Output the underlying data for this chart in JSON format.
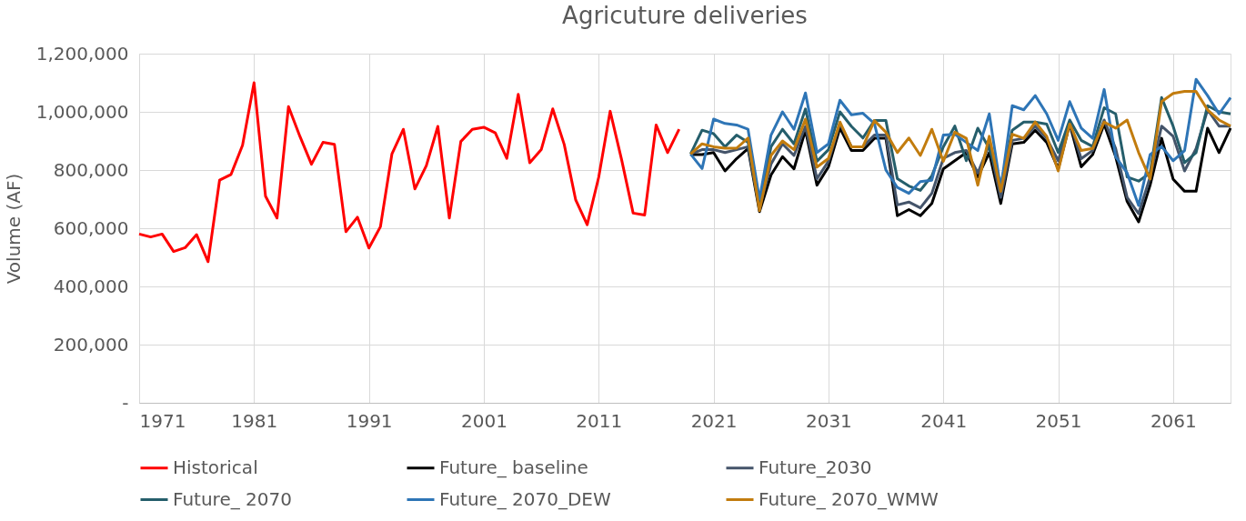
{
  "chart_data": {
    "type": "line",
    "title": "Agricuture deliveries",
    "ylabel": "Volume (AF)",
    "xlim": [
      1971,
      2066
    ],
    "xticks": [
      1971,
      1981,
      1991,
      2001,
      2011,
      2021,
      2031,
      2041,
      2051,
      2061
    ],
    "ylim": [
      0,
      1200000
    ],
    "yticks": [
      {
        "value": 0,
        "label": "-"
      },
      {
        "value": 200000,
        "label": "200,000"
      },
      {
        "value": 400000,
        "label": "400,000"
      },
      {
        "value": 600000,
        "label": "600,000"
      },
      {
        "value": 800000,
        "label": "800,000"
      },
      {
        "value": 1000000,
        "label": "1,000,000"
      },
      {
        "value": 1200000,
        "label": "1,200,000"
      }
    ],
    "grid": true,
    "legend": "bottom",
    "marker": "none",
    "line_style": "solid",
    "series": [
      {
        "name": "Historical",
        "color": "#ff0000",
        "x": [
          1971,
          1972,
          1973,
          1974,
          1975,
          1976,
          1977,
          1978,
          1979,
          1980,
          1981,
          1982,
          1983,
          1984,
          1985,
          1986,
          1987,
          1988,
          1989,
          1990,
          1991,
          1992,
          1993,
          1994,
          1995,
          1996,
          1997,
          1998,
          1999,
          2000,
          2001,
          2002,
          2003,
          2004,
          2005,
          2006,
          2007,
          2008,
          2009,
          2010,
          2011,
          2012,
          2013,
          2014,
          2015,
          2016,
          2017,
          2018
        ],
        "values": [
          580000,
          570000,
          580000,
          520000,
          533000,
          578000,
          485000,
          765000,
          785000,
          885000,
          1100000,
          710000,
          635000,
          1018000,
          915000,
          820000,
          895000,
          888000,
          588000,
          638000,
          532000,
          605000,
          855000,
          940000,
          735000,
          815000,
          950000,
          635000,
          898000,
          940000,
          947000,
          928000,
          840000,
          1060000,
          825000,
          870000,
          1010000,
          888000,
          697000,
          612000,
          775000,
          1002000,
          835000,
          652000,
          645000,
          955000,
          860000,
          940000
        ]
      },
      {
        "name": "Future_ baseline",
        "color": "#000000",
        "x": [
          2019,
          2020,
          2021,
          2022,
          2023,
          2024,
          2025,
          2026,
          2027,
          2028,
          2029,
          2030,
          2031,
          2032,
          2033,
          2034,
          2035,
          2036,
          2037,
          2038,
          2039,
          2040,
          2041,
          2042,
          2043,
          2044,
          2045,
          2046,
          2047,
          2048,
          2049,
          2050,
          2051,
          2052,
          2053,
          2054,
          2055,
          2056,
          2057,
          2058,
          2059,
          2060,
          2061,
          2062,
          2063,
          2064,
          2065,
          2066
        ],
        "values": [
          853000,
          853000,
          860000,
          797000,
          839000,
          874000,
          657000,
          783000,
          846000,
          804000,
          937000,
          748000,
          811000,
          944000,
          867000,
          867000,
          909000,
          909000,
          643000,
          664000,
          643000,
          685000,
          804000,
          832000,
          860000,
          776000,
          860000,
          685000,
          890000,
          895000,
          937000,
          895000,
          804000,
          958000,
          811000,
          853000,
          958000,
          846000,
          692000,
          622000,
          748000,
          909000,
          769000,
          727000,
          727000,
          944000,
          860000,
          944000
        ]
      },
      {
        "name": "Future_2030",
        "color": "#44546a",
        "x": [
          2019,
          2020,
          2021,
          2022,
          2023,
          2024,
          2025,
          2026,
          2027,
          2028,
          2029,
          2030,
          2031,
          2032,
          2033,
          2034,
          2035,
          2036,
          2037,
          2038,
          2039,
          2040,
          2041,
          2042,
          2043,
          2044,
          2045,
          2046,
          2047,
          2048,
          2049,
          2050,
          2051,
          2052,
          2053,
          2054,
          2055,
          2056,
          2057,
          2058,
          2059,
          2060,
          2061,
          2062,
          2063,
          2064,
          2065,
          2066
        ],
        "values": [
          855000,
          870000,
          870000,
          860000,
          870000,
          880000,
          670000,
          820000,
          890000,
          850000,
          950000,
          770000,
          830000,
          960000,
          880000,
          880000,
          920000,
          920000,
          680000,
          690000,
          670000,
          720000,
          840000,
          860000,
          867000,
          790000,
          888000,
          706000,
          902000,
          909000,
          951000,
          909000,
          832000,
          965000,
          839000,
          867000,
          972000,
          874000,
          706000,
          650000,
          776000,
          951000,
          916000,
          797000,
          874000,
          1007000,
          951000,
          951000
        ]
      },
      {
        "name": "Future_ 2070",
        "color": "#255e6b",
        "x": [
          2019,
          2020,
          2021,
          2022,
          2023,
          2024,
          2025,
          2026,
          2027,
          2028,
          2029,
          2030,
          2031,
          2032,
          2033,
          2034,
          2035,
          2036,
          2037,
          2038,
          2039,
          2040,
          2041,
          2042,
          2043,
          2044,
          2045,
          2046,
          2047,
          2048,
          2049,
          2050,
          2051,
          2052,
          2053,
          2054,
          2055,
          2056,
          2057,
          2058,
          2059,
          2060,
          2061,
          2062,
          2063,
          2064,
          2065,
          2066
        ],
        "values": [
          855000,
          937000,
          925000,
          880000,
          920000,
          895000,
          680000,
          880000,
          940000,
          890000,
          1010000,
          830000,
          870000,
          1000000,
          950000,
          910000,
          970000,
          970000,
          770000,
          745000,
          730000,
          780000,
          880000,
          951000,
          832000,
          944000,
          874000,
          748000,
          937000,
          965000,
          965000,
          958000,
          860000,
          972000,
          902000,
          881000,
          1014000,
          993000,
          776000,
          762000,
          790000,
          1049000,
          951000,
          825000,
          860000,
          1021000,
          1000000,
          993000
        ]
      },
      {
        "name": "Future_ 2070_DEW",
        "color": "#2e75b6",
        "x": [
          2019,
          2020,
          2021,
          2022,
          2023,
          2024,
          2025,
          2026,
          2027,
          2028,
          2029,
          2030,
          2031,
          2032,
          2033,
          2034,
          2035,
          2036,
          2037,
          2038,
          2039,
          2040,
          2041,
          2042,
          2043,
          2044,
          2045,
          2046,
          2047,
          2048,
          2049,
          2050,
          2051,
          2052,
          2053,
          2054,
          2055,
          2056,
          2057,
          2058,
          2059,
          2060,
          2061,
          2062,
          2063,
          2064,
          2065,
          2066
        ],
        "values": [
          855000,
          805000,
          975000,
          960000,
          955000,
          940000,
          700000,
          920000,
          1000000,
          940000,
          1065000,
          860000,
          890000,
          1040000,
          990000,
          995000,
          960000,
          800000,
          740000,
          720000,
          760000,
          765000,
          920000,
          923000,
          895000,
          867000,
          993000,
          734000,
          1021000,
          1007000,
          1056000,
          993000,
          902000,
          1035000,
          944000,
          909000,
          1077000,
          846000,
          790000,
          678000,
          853000,
          881000,
          832000,
          867000,
          1112000,
          1056000,
          993000,
          1049000
        ]
      },
      {
        "name": "Future_ 2070_WMW",
        "color": "#c27c0e",
        "x": [
          2019,
          2020,
          2021,
          2022,
          2023,
          2024,
          2025,
          2026,
          2027,
          2028,
          2029,
          2030,
          2031,
          2032,
          2033,
          2034,
          2035,
          2036,
          2037,
          2038,
          2039,
          2040,
          2041,
          2042,
          2043,
          2044,
          2045,
          2046,
          2047,
          2048,
          2049,
          2050,
          2051,
          2052,
          2053,
          2054,
          2055,
          2056,
          2057,
          2058,
          2059,
          2060,
          2061,
          2062,
          2063,
          2064,
          2065,
          2066
        ],
        "values": [
          855000,
          890000,
          880000,
          875000,
          875000,
          910000,
          660000,
          850000,
          900000,
          870000,
          975000,
          810000,
          840000,
          965000,
          880000,
          880000,
          970000,
          930000,
          860000,
          910000,
          850000,
          940000,
          830000,
          930000,
          909000,
          748000,
          916000,
          727000,
          923000,
          909000,
          965000,
          916000,
          797000,
          958000,
          867000,
          874000,
          965000,
          944000,
          972000,
          860000,
          769000,
          1035000,
          1063000,
          1070000,
          1070000,
          1007000,
          972000,
          951000
        ]
      }
    ]
  }
}
